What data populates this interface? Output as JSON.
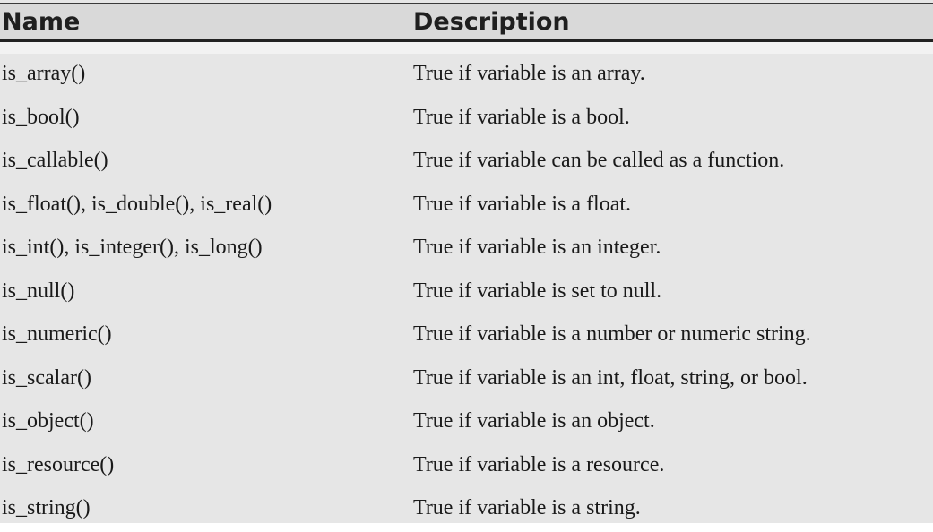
{
  "table": {
    "headers": {
      "name": "Name",
      "description": "Description"
    },
    "rows": [
      {
        "name": "is_array()",
        "description": "True if variable is an array."
      },
      {
        "name": "is_bool()",
        "description": "True if variable is a bool."
      },
      {
        "name": "is_callable()",
        "description": "True if variable can be called as a function."
      },
      {
        "name": "is_float(), is_double(), is_real()",
        "description": "True if variable is a float."
      },
      {
        "name": "is_int(), is_integer(), is_long()",
        "description": "True if variable is an integer."
      },
      {
        "name": "is_null()",
        "description": "True if variable is set to null."
      },
      {
        "name": "is_numeric()",
        "description": "True if variable is a number or numeric string."
      },
      {
        "name": "is_scalar()",
        "description": "True if variable is an int, float, string, or bool."
      },
      {
        "name": "is_object()",
        "description": "True if variable is an object."
      },
      {
        "name": "is_resource()",
        "description": "True if variable is a resource."
      },
      {
        "name": "is_string()",
        "description": "True if variable is a string."
      }
    ]
  }
}
